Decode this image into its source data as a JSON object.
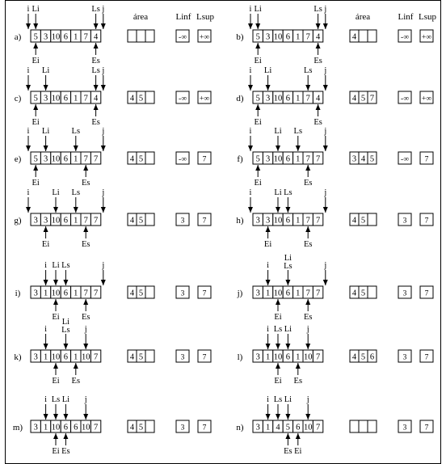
{
  "headers": [
    {
      "area": "área",
      "linf": "Linf",
      "lsup": "Lsup"
    },
    {
      "area": "área",
      "linf": "Linf",
      "lsup": "Lsup"
    }
  ],
  "steps": [
    {
      "label": "a)",
      "array": [
        "5",
        "3",
        "10",
        "6",
        "1",
        "7",
        "4"
      ],
      "area": [
        "",
        "",
        ""
      ],
      "linf": "-∞",
      "lsup": "+∞",
      "top": [
        {
          "t": "i",
          "at": -1
        },
        {
          "t": "Li",
          "at": 0
        },
        {
          "t": "Ls",
          "at": 6
        },
        {
          "t": "j",
          "at": 7
        }
      ],
      "bottom": [
        {
          "t": "Ei",
          "at": 0
        },
        {
          "t": "Es",
          "at": 6
        }
      ]
    },
    {
      "label": "b)",
      "array": [
        "5",
        "3",
        "10",
        "6",
        "1",
        "7",
        "4"
      ],
      "area": [
        "4",
        "",
        ""
      ],
      "linf": "-∞",
      "lsup": "+∞",
      "top": [
        {
          "t": "i",
          "at": -1
        },
        {
          "t": "Li",
          "at": 0
        },
        {
          "t": "Ls",
          "at": 6
        },
        {
          "t": "j",
          "at": 7
        }
      ],
      "bottom": [
        {
          "t": "Ei",
          "at": 0
        },
        {
          "t": "Es",
          "at": 6
        }
      ]
    },
    {
      "label": "c)",
      "array": [
        "5",
        "3",
        "10",
        "6",
        "1",
        "7",
        "4"
      ],
      "area": [
        "4",
        "5",
        ""
      ],
      "linf": "-∞",
      "lsup": "+∞",
      "top": [
        {
          "t": "i",
          "at": -1
        },
        {
          "t": "Li",
          "at": 1
        },
        {
          "t": "Ls",
          "at": 6
        },
        {
          "t": "j",
          "at": 7
        }
      ],
      "bottom": [
        {
          "t": "Ei",
          "at": 0
        },
        {
          "t": "Es",
          "at": 6
        }
      ]
    },
    {
      "label": "d)",
      "array": [
        "5",
        "3",
        "10",
        "6",
        "1",
        "7",
        "4"
      ],
      "area": [
        "4",
        "5",
        "7"
      ],
      "linf": "-∞",
      "lsup": "+∞",
      "top": [
        {
          "t": "i",
          "at": -1
        },
        {
          "t": "Li",
          "at": 1
        },
        {
          "t": "Ls",
          "at": 5
        },
        {
          "t": "j",
          "at": 7
        }
      ],
      "bottom": [
        {
          "t": "Ei",
          "at": 0
        },
        {
          "t": "Es",
          "at": 6
        }
      ]
    },
    {
      "label": "e)",
      "array": [
        "5",
        "3",
        "10",
        "6",
        "1",
        "7",
        "7"
      ],
      "area": [
        "4",
        "5",
        ""
      ],
      "linf": "-∞",
      "lsup": "7",
      "top": [
        {
          "t": "i",
          "at": -1
        },
        {
          "t": "Li",
          "at": 1
        },
        {
          "t": "Ls",
          "at": 4
        },
        {
          "t": "j",
          "at": 7
        }
      ],
      "bottom": [
        {
          "t": "Ei",
          "at": 0
        },
        {
          "t": "Es",
          "at": 5
        }
      ]
    },
    {
      "label": "f)",
      "array": [
        "5",
        "3",
        "10",
        "6",
        "1",
        "7",
        "7"
      ],
      "area": [
        "3",
        "4",
        "5"
      ],
      "linf": "-∞",
      "lsup": "7",
      "top": [
        {
          "t": "i",
          "at": -1
        },
        {
          "t": "Li",
          "at": 2
        },
        {
          "t": "Ls",
          "at": 4
        },
        {
          "t": "j",
          "at": 7
        }
      ],
      "bottom": [
        {
          "t": "Ei",
          "at": 0
        },
        {
          "t": "Es",
          "at": 5
        }
      ]
    },
    {
      "label": "g)",
      "array": [
        "3",
        "3",
        "10",
        "6",
        "1",
        "7",
        "7"
      ],
      "area": [
        "4",
        "5",
        ""
      ],
      "linf": "3",
      "lsup": "7",
      "top": [
        {
          "t": "i",
          "at": -1
        },
        {
          "t": "Li",
          "at": 2
        },
        {
          "t": "Ls",
          "at": 4
        },
        {
          "t": "j",
          "at": 7
        }
      ],
      "bottom": [
        {
          "t": "Ei",
          "at": 1
        },
        {
          "t": "Es",
          "at": 5
        }
      ]
    },
    {
      "label": "h)",
      "array": [
        "3",
        "3",
        "10",
        "6",
        "1",
        "7",
        "7"
      ],
      "area": [
        "4",
        "5",
        ""
      ],
      "linf": "3",
      "lsup": "7",
      "top": [
        {
          "t": "i",
          "at": -1
        },
        {
          "t": "Li",
          "at": 2
        },
        {
          "t": "Ls",
          "at": 3
        },
        {
          "t": "j",
          "at": 7
        }
      ],
      "bottom": [
        {
          "t": "Ei",
          "at": 1
        },
        {
          "t": "Es",
          "at": 5
        }
      ]
    },
    {
      "label": "i)",
      "array": [
        "3",
        "1",
        "10",
        "6",
        "1",
        "7",
        "7"
      ],
      "area": [
        "4",
        "5",
        ""
      ],
      "linf": "3",
      "lsup": "7",
      "top": [
        {
          "t": "i",
          "at": 1
        },
        {
          "t": "Li",
          "at": 2
        },
        {
          "t": "Ls",
          "at": 3
        },
        {
          "t": "j",
          "at": 7
        }
      ],
      "bottom": [
        {
          "t": "Ei",
          "at": 2
        },
        {
          "t": "Es",
          "at": 5
        }
      ]
    },
    {
      "label": "j)",
      "array": [
        "3",
        "1",
        "10",
        "6",
        "1",
        "7",
        "7"
      ],
      "area": [
        "4",
        "5",
        ""
      ],
      "linf": "3",
      "lsup": "7",
      "top": [
        {
          "t": "i",
          "at": 1
        },
        {
          "t": "Li\nLs",
          "at": 3
        },
        {
          "t": "j",
          "at": 7
        }
      ],
      "bottom": [
        {
          "t": "Ei",
          "at": 2
        },
        {
          "t": "Es",
          "at": 5
        }
      ]
    },
    {
      "label": "k)",
      "array": [
        "3",
        "1",
        "10",
        "6",
        "1",
        "10",
        "7"
      ],
      "area": [
        "4",
        "5",
        ""
      ],
      "linf": "3",
      "lsup": "7",
      "top": [
        {
          "t": "i",
          "at": 1
        },
        {
          "t": "Li\nLs",
          "at": 3
        },
        {
          "t": "j",
          "at": 5
        }
      ],
      "bottom": [
        {
          "t": "Ei",
          "at": 2
        },
        {
          "t": "Es",
          "at": 4
        }
      ]
    },
    {
      "label": "l)",
      "array": [
        "3",
        "1",
        "10",
        "6",
        "1",
        "10",
        "7"
      ],
      "area": [
        "4",
        "5",
        "6"
      ],
      "linf": "3",
      "lsup": "7",
      "top": [
        {
          "t": "i",
          "at": 1
        },
        {
          "t": "Ls",
          "at": 2
        },
        {
          "t": "Li",
          "at": 3
        },
        {
          "t": "j",
          "at": 5
        }
      ],
      "bottom": [
        {
          "t": "Ei",
          "at": 2
        },
        {
          "t": "Es",
          "at": 4
        }
      ]
    },
    {
      "label": "m)",
      "array": [
        "3",
        "1",
        "10",
        "6",
        "6",
        "10",
        "7"
      ],
      "area": [
        "4",
        "5",
        ""
      ],
      "linf": "3",
      "lsup": "7",
      "top": [
        {
          "t": "i",
          "at": 1
        },
        {
          "t": "Ls",
          "at": 2
        },
        {
          "t": "Li",
          "at": 3
        },
        {
          "t": "j",
          "at": 5
        }
      ],
      "bottom": [
        {
          "t": "Ei",
          "at": 2
        },
        {
          "t": "Es",
          "at": 3
        }
      ]
    },
    {
      "label": "n)",
      "array": [
        "3",
        "1",
        "4",
        "5",
        "6",
        "10",
        "7"
      ],
      "area": [
        "",
        "",
        ""
      ],
      "linf": "3",
      "lsup": "7",
      "top": [
        {
          "t": "i",
          "at": 1
        },
        {
          "t": "Ls",
          "at": 2
        },
        {
          "t": "Li",
          "at": 3
        },
        {
          "t": "j",
          "at": 5
        }
      ],
      "bottom": [
        {
          "t": "Es",
          "at": 3
        },
        {
          "t": "Ei",
          "at": 4
        }
      ]
    }
  ]
}
